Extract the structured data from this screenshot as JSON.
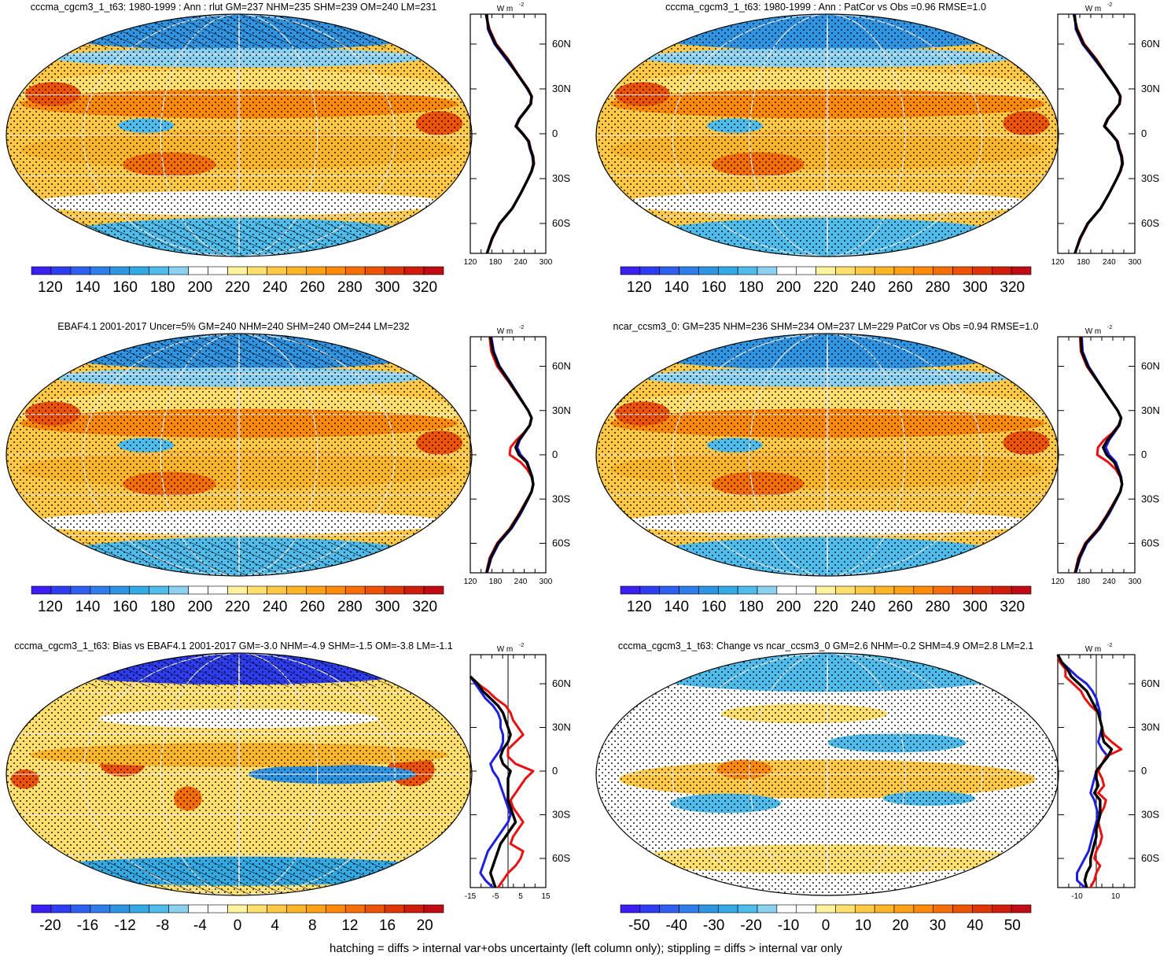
{
  "figure": {
    "footer": "hatching = diffs > internal var+obs uncertainty (left column only); stippling = diffs > internal var only"
  },
  "colors": {
    "obs_line": "#1f1fe0",
    "model_line": "#e81010",
    "mean_line": "#000000"
  },
  "scales": {
    "abs": {
      "colors": [
        "#3a1ff0",
        "#2f3df2",
        "#2e5fee",
        "#2f7de8",
        "#2f94e2",
        "#34aae4",
        "#4fbceb",
        "#8dd1f0",
        "#ffffff",
        "#ffffff",
        "#fff3a0",
        "#ffdf6e",
        "#ffc946",
        "#ffb528",
        "#ffa016",
        "#ff8a0a",
        "#f76e08",
        "#ec5208",
        "#df3608",
        "#cf1c0c",
        "#c00a14"
      ],
      "ticks": [
        "120",
        "140",
        "160",
        "180",
        "200",
        "220",
        "240",
        "260",
        "280",
        "300",
        "320"
      ]
    },
    "bias": {
      "colors": [
        "#3a1ff0",
        "#2f3df2",
        "#2e5fee",
        "#2f7de8",
        "#2f94e2",
        "#34aae4",
        "#4fbceb",
        "#8dd1f0",
        "#ffffff",
        "#ffffff",
        "#fff3a0",
        "#ffdf6e",
        "#ffc946",
        "#ffb528",
        "#ffa016",
        "#ff8a0a",
        "#f76e08",
        "#ec5208",
        "#df3608",
        "#cf1c0c",
        "#c00a14"
      ],
      "ticks": [
        "-20",
        "-16",
        "-12",
        "-8",
        "-4",
        "0",
        "4",
        "8",
        "12",
        "16",
        "20"
      ]
    },
    "change": {
      "colors": [
        "#3a1ff0",
        "#2f3df2",
        "#2e5fee",
        "#2f7de8",
        "#2f94e2",
        "#34aae4",
        "#4fbceb",
        "#8dd1f0",
        "#ffffff",
        "#ffffff",
        "#fff3a0",
        "#ffdf6e",
        "#ffc946",
        "#ffb528",
        "#ffa016",
        "#ff8a0a",
        "#f76e08",
        "#ec5208",
        "#df3608",
        "#cf1c0c",
        "#c00a14"
      ],
      "ticks": [
        "-50",
        "-40",
        "-30",
        "-20",
        "-10",
        "0",
        "10",
        "20",
        "30",
        "40",
        "50"
      ]
    }
  },
  "chart_data": [
    {
      "type": "heatmap",
      "panel": "map",
      "title": "cccma_cgcm3_1_t63: 1980-1999 : Ann : rlut GM=237 NHM=235 SHM=239 OM=240 LM=231",
      "field": "abs",
      "hatched": true,
      "colorbar_ticks": [
        "120",
        "140",
        "160",
        "180",
        "200",
        "220",
        "240",
        "260",
        "280",
        "300",
        "320"
      ]
    },
    {
      "type": "line",
      "panel": "zonal_mean",
      "unit": "W m-2",
      "xlim": [
        120,
        300
      ],
      "xticks": [
        "120",
        "180",
        "240",
        "300"
      ],
      "ylim": [
        -80,
        80
      ],
      "yticks": [
        "60N",
        "30N",
        "0",
        "30S",
        "60S"
      ],
      "lat": [
        80,
        70,
        60,
        50,
        40,
        30,
        25,
        20,
        15,
        10,
        5,
        0,
        -5,
        -10,
        -15,
        -20,
        -25,
        -30,
        -40,
        -50,
        -60,
        -70,
        -80
      ],
      "series": [
        {
          "values": [
            160,
            162,
            178,
            205,
            232,
            256,
            266,
            264,
            250,
            236,
            228,
            244,
            258,
            262,
            268,
            270,
            266,
            258,
            240,
            220,
            190,
            172,
            160
          ]
        },
        {
          "values": [
            157,
            166,
            182,
            210,
            233,
            258,
            267,
            265,
            252,
            238,
            230,
            246,
            260,
            264,
            270,
            272,
            267,
            258,
            240,
            220,
            191,
            173,
            160
          ]
        },
        {
          "values": [
            158,
            164,
            180,
            208,
            232,
            257,
            266,
            264,
            251,
            237,
            229,
            245,
            259,
            263,
            269,
            271,
            266,
            258,
            240,
            220,
            190,
            172,
            160
          ]
        }
      ]
    },
    {
      "type": "heatmap",
      "panel": "map",
      "title": "cccma_cgcm3_1_t63: 1980-1999 : Ann : PatCor vs Obs =0.96 RMSE=1.0",
      "field": "abs",
      "hatched": false,
      "colorbar_ticks": [
        "120",
        "140",
        "160",
        "180",
        "200",
        "220",
        "240",
        "260",
        "280",
        "300",
        "320"
      ]
    },
    {
      "type": "line",
      "panel": "zonal_mean",
      "unit": "W m-2",
      "xlim": [
        120,
        300
      ],
      "xticks": [
        "120",
        "180",
        "240",
        "300"
      ],
      "ylim": [
        -80,
        80
      ],
      "yticks": [
        "60N",
        "30N",
        "0",
        "30S",
        "60S"
      ],
      "lat": [
        80,
        70,
        60,
        50,
        40,
        30,
        25,
        20,
        15,
        10,
        5,
        0,
        -5,
        -10,
        -15,
        -20,
        -25,
        -30,
        -40,
        -50,
        -60,
        -70,
        -80
      ],
      "series": [
        {
          "values": [
            160,
            162,
            178,
            205,
            232,
            256,
            266,
            264,
            250,
            236,
            228,
            244,
            258,
            262,
            268,
            270,
            266,
            258,
            240,
            220,
            190,
            172,
            160
          ]
        },
        {
          "values": [
            157,
            166,
            182,
            210,
            233,
            258,
            267,
            265,
            252,
            238,
            230,
            246,
            260,
            264,
            270,
            272,
            267,
            258,
            240,
            220,
            191,
            173,
            160
          ]
        },
        {
          "values": [
            158,
            164,
            180,
            208,
            232,
            257,
            266,
            264,
            251,
            237,
            229,
            245,
            259,
            263,
            269,
            271,
            266,
            258,
            240,
            220,
            190,
            172,
            160
          ]
        }
      ]
    },
    {
      "type": "heatmap",
      "panel": "map",
      "title": "EBAF4.1 2001-2017 Uncer=5% GM=240 NHM=240 SHM=240 OM=244 LM=232",
      "field": "abs",
      "hatched": true,
      "colorbar_ticks": [
        "120",
        "140",
        "160",
        "180",
        "200",
        "220",
        "240",
        "260",
        "280",
        "300",
        "320"
      ]
    },
    {
      "type": "line",
      "panel": "zonal_mean",
      "unit": "W m-2",
      "xlim": [
        120,
        300
      ],
      "xticks": [
        "120",
        "180",
        "240",
        "300"
      ],
      "ylim": [
        -80,
        80
      ],
      "yticks": [
        "60N",
        "30N",
        "0",
        "30S",
        "60S"
      ],
      "lat": [
        80,
        70,
        60,
        50,
        40,
        30,
        25,
        20,
        15,
        10,
        5,
        0,
        -5,
        -10,
        -15,
        -20,
        -25,
        -30,
        -40,
        -50,
        -60,
        -70,
        -80
      ],
      "series": [
        {
          "values": [
            170,
            176,
            190,
            214,
            236,
            258,
            266,
            262,
            250,
            238,
            232,
            240,
            256,
            262,
            268,
            270,
            266,
            258,
            240,
            218,
            188,
            170,
            160
          ]
        },
        {
          "values": [
            166,
            170,
            184,
            210,
            234,
            258,
            266,
            262,
            248,
            230,
            216,
            214,
            240,
            256,
            266,
            270,
            266,
            256,
            236,
            214,
            184,
            166,
            158
          ]
        },
        {
          "values": [
            168,
            174,
            188,
            212,
            235,
            258,
            266,
            262,
            249,
            236,
            228,
            236,
            254,
            261,
            267,
            270,
            266,
            257,
            238,
            216,
            186,
            168,
            159
          ]
        }
      ]
    },
    {
      "type": "heatmap",
      "panel": "map",
      "title": "ncar_ccsm3_0: GM=235 NHM=236 SHM=234 OM=237 LM=229 PatCor vs Obs =0.94 RMSE=1.0",
      "field": "abs",
      "hatched": false,
      "colorbar_ticks": [
        "120",
        "140",
        "160",
        "180",
        "200",
        "220",
        "240",
        "260",
        "280",
        "300",
        "320"
      ]
    },
    {
      "type": "line",
      "panel": "zonal_mean",
      "unit": "W m-2",
      "xlim": [
        120,
        300
      ],
      "xticks": [
        "120",
        "180",
        "240",
        "300"
      ],
      "ylim": [
        -80,
        80
      ],
      "yticks": [
        "60N",
        "30N",
        "0",
        "30S",
        "60S"
      ],
      "lat": [
        80,
        70,
        60,
        50,
        40,
        30,
        25,
        20,
        15,
        10,
        5,
        0,
        -5,
        -10,
        -15,
        -20,
        -25,
        -30,
        -40,
        -50,
        -60,
        -70,
        -80
      ],
      "series": [
        {
          "values": [
            176,
            178,
            192,
            214,
            236,
            260,
            268,
            264,
            252,
            240,
            232,
            240,
            256,
            262,
            268,
            270,
            266,
            258,
            240,
            218,
            188,
            172,
            162
          ]
        },
        {
          "values": [
            172,
            174,
            188,
            212,
            236,
            260,
            268,
            262,
            248,
            228,
            214,
            212,
            238,
            256,
            266,
            270,
            266,
            256,
            236,
            214,
            184,
            168,
            160
          ]
        },
        {
          "values": [
            174,
            176,
            190,
            213,
            236,
            260,
            268,
            263,
            250,
            236,
            226,
            234,
            252,
            260,
            267,
            270,
            266,
            257,
            238,
            216,
            186,
            170,
            161
          ]
        }
      ]
    },
    {
      "type": "heatmap",
      "panel": "map",
      "title": "cccma_cgcm3_1_t63: Bias vs EBAF4.1 2001-2017 GM=-3.0 NHM=-4.9 SHM=-1.5 OM=-3.8 LM=-1.1",
      "field": "bias",
      "hatched": true,
      "colorbar_ticks": [
        "-20",
        "-16",
        "-12",
        "-8",
        "-4",
        "0",
        "4",
        "8",
        "12",
        "16",
        "20"
      ]
    },
    {
      "type": "line",
      "panel": "zonal_mean",
      "unit": "W m-2",
      "xlim": [
        -15,
        15
      ],
      "xticks": [
        "-15",
        "-5",
        "5",
        "15"
      ],
      "ylim": [
        -80,
        80
      ],
      "yticks": [
        "60N",
        "30N",
        "0",
        "30S",
        "60S"
      ],
      "zero_line": 0,
      "lat": [
        65,
        60,
        55,
        50,
        45,
        40,
        35,
        30,
        25,
        20,
        15,
        10,
        5,
        0,
        -5,
        -10,
        -15,
        -20,
        -25,
        -30,
        -35,
        -40,
        -45,
        -50,
        -55,
        -60,
        -65,
        -70,
        -75,
        -80
      ],
      "series": [
        {
          "values": [
            -15,
            -13,
            -11,
            -9,
            -6,
            -4,
            -3,
            -3,
            -2,
            -2,
            -3,
            -5,
            -7,
            -6,
            -4,
            -3,
            -2,
            -1,
            0,
            1,
            0,
            -2,
            -4,
            -6,
            -8,
            -9,
            -10,
            -11,
            -9,
            -6
          ]
        },
        {
          "values": [
            -15,
            -12,
            -8,
            -5,
            -1,
            1,
            2,
            4,
            6,
            3,
            0,
            0,
            3,
            10,
            7,
            5,
            3,
            1,
            2,
            4,
            6,
            4,
            2,
            1,
            6,
            5,
            3,
            0,
            -2,
            -4
          ]
        },
        {
          "values": [
            -15,
            -12,
            -10,
            -7,
            -4,
            -2,
            -1,
            0,
            1,
            0,
            -2,
            -3,
            -2,
            1,
            0,
            0,
            0,
            0,
            1,
            2,
            3,
            1,
            -1,
            -3,
            -4,
            -5,
            -6,
            -7,
            -6,
            -5
          ]
        }
      ]
    },
    {
      "type": "heatmap",
      "panel": "map",
      "title": "cccma_cgcm3_1_t63: Change vs ncar_ccsm3_0 GM=2.6 NHM=-0.2 SHM=4.9 OM=2.8 LM=2.1",
      "field": "change",
      "hatched": false,
      "colorbar_ticks": [
        "-50",
        "-40",
        "-30",
        "-20",
        "-10",
        "0",
        "10",
        "20",
        "30",
        "40",
        "50"
      ]
    },
    {
      "type": "line",
      "panel": "zonal_mean",
      "unit": "W m-2",
      "xlim": [
        -20,
        20
      ],
      "xticks": [
        "-10",
        "10"
      ],
      "ylim": [
        -80,
        80
      ],
      "yticks": [
        "60N",
        "30N",
        "0",
        "30S",
        "60S"
      ],
      "zero_line": 0,
      "lat": [
        80,
        75,
        70,
        65,
        60,
        55,
        50,
        45,
        40,
        35,
        30,
        25,
        20,
        15,
        10,
        5,
        0,
        -5,
        -10,
        -15,
        -20,
        -25,
        -30,
        -35,
        -40,
        -45,
        -50,
        -55,
        -60,
        -65,
        -70,
        -75,
        -80
      ],
      "series": [
        {
          "values": [
            -20,
            -18,
            -14,
            -10,
            -5,
            -2,
            0,
            1,
            2,
            2,
            3,
            2,
            1,
            3,
            6,
            3,
            0,
            -1,
            -2,
            -3,
            -1,
            0,
            1,
            0,
            -1,
            -2,
            -3,
            -4,
            -6,
            -8,
            -10,
            -10,
            -6
          ]
        },
        {
          "values": [
            -20,
            -19,
            -16,
            -16,
            -12,
            -8,
            -6,
            -3,
            1,
            2,
            3,
            4,
            8,
            13,
            5,
            3,
            1,
            3,
            4,
            1,
            5,
            4,
            2,
            1,
            2,
            3,
            2,
            0,
            -1,
            2,
            0,
            -1,
            -3
          ]
        },
        {
          "values": [
            -20,
            -18,
            -15,
            -13,
            -9,
            -5,
            -3,
            -1,
            1,
            2,
            3,
            3,
            4,
            8,
            6,
            3,
            0,
            0,
            1,
            -1,
            2,
            2,
            2,
            1,
            0,
            0,
            -1,
            -2,
            -3,
            -3,
            -5,
            -6,
            -5
          ]
        }
      ]
    }
  ]
}
